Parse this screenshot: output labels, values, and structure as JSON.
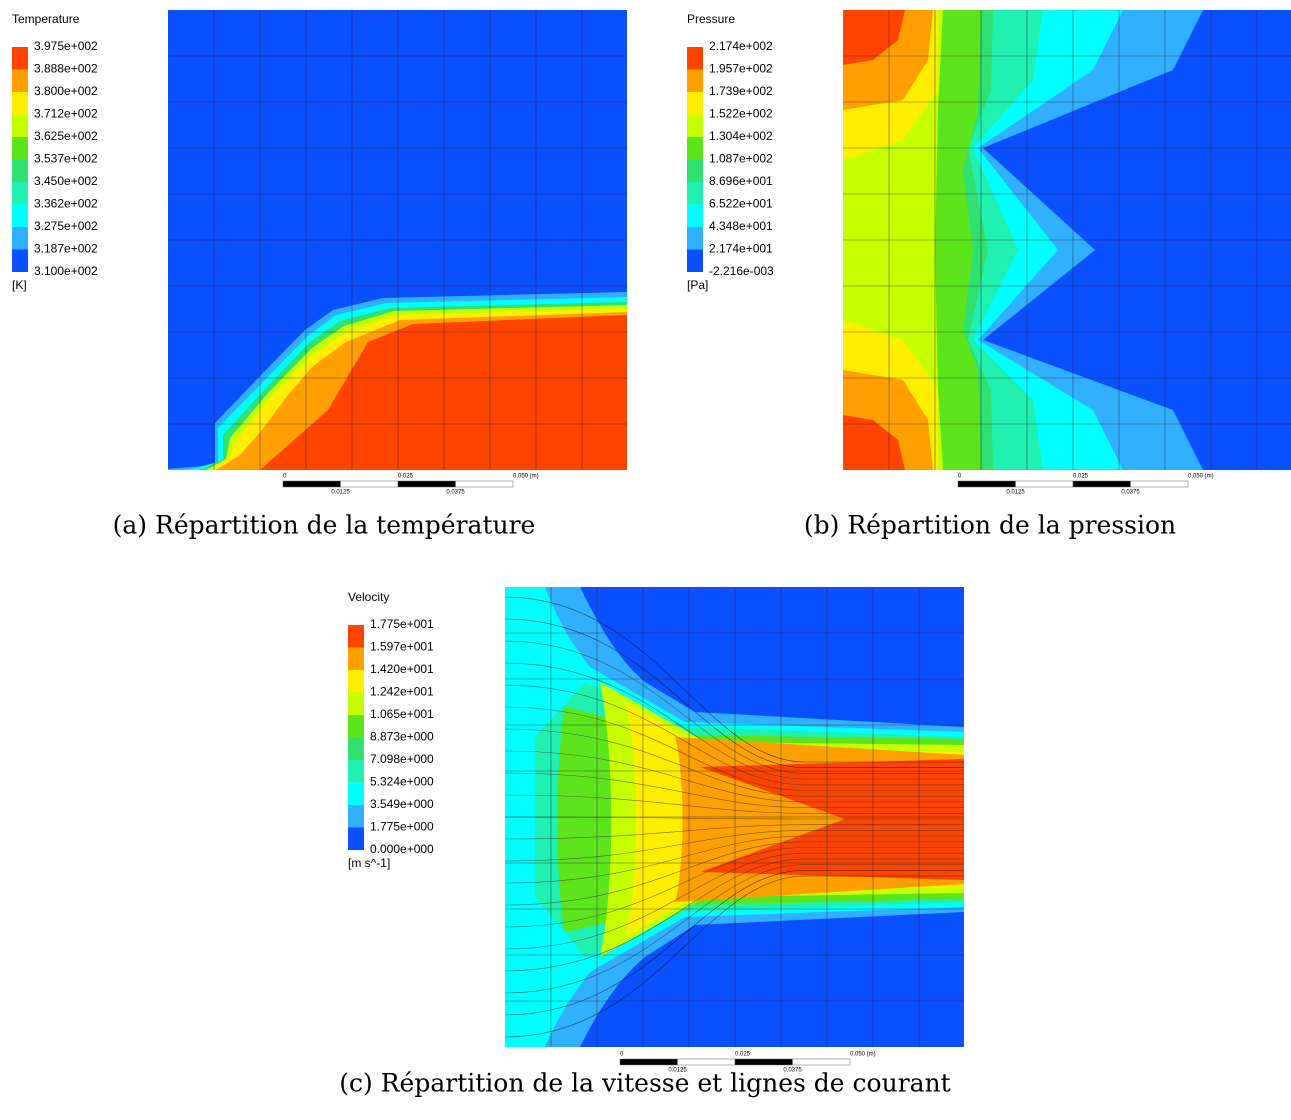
{
  "legend_colors": [
    "#ff4400",
    "#ffa000",
    "#ffee00",
    "#c6ff00",
    "#5ee41c",
    "#30e070",
    "#20f0b0",
    "#00ffff",
    "#30b0ff",
    "#0a50ff"
  ],
  "panels": [
    {
      "legend": {
        "title": "Temperature",
        "levels": [
          "3.975e+002",
          "3.888e+002",
          "3.800e+002",
          "3.712e+002",
          "3.625e+002",
          "3.537e+002",
          "3.450e+002",
          "3.362e+002",
          "3.275e+002",
          "3.187e+002",
          "3.100e+002"
        ],
        "unit": "[K]"
      },
      "scale": {
        "labels": [
          "0",
          "0.025",
          "0.050  (m)"
        ],
        "sublabels": [
          "0.0125",
          "0.0375"
        ]
      },
      "caption": "(a) Répartition de la température"
    },
    {
      "legend": {
        "title": "Pressure",
        "levels": [
          "2.174e+002",
          "1.957e+002",
          "1.739e+002",
          "1.522e+002",
          "1.304e+002",
          "1.087e+002",
          "8.696e+001",
          "6.522e+001",
          "4.348e+001",
          "2.174e+001",
          "-2.216e-003"
        ],
        "unit": "[Pa]"
      },
      "scale": {
        "labels": [
          "0",
          "0.025",
          "0.050  (m)"
        ],
        "sublabels": [
          "0.0125",
          "0.0375"
        ]
      },
      "caption": "(b) Répartition de la pression"
    },
    {
      "legend": {
        "title": "Velocity",
        "levels": [
          "1.775e+001",
          "1.597e+001",
          "1.420e+001",
          "1.242e+001",
          "1.065e+001",
          "8.873e+000",
          "7.098e+000",
          "5.324e+000",
          "3.549e+000",
          "1.775e+000",
          "0.000e+000"
        ],
        "unit": "[m s^-1]"
      },
      "scale": {
        "labels": [
          "0",
          "0.025",
          "0.050  (m)"
        ],
        "sublabels": [
          "0.0125",
          "0.0375"
        ]
      },
      "caption": "(c) Répartition de la vitesse et lignes de courant"
    }
  ]
}
